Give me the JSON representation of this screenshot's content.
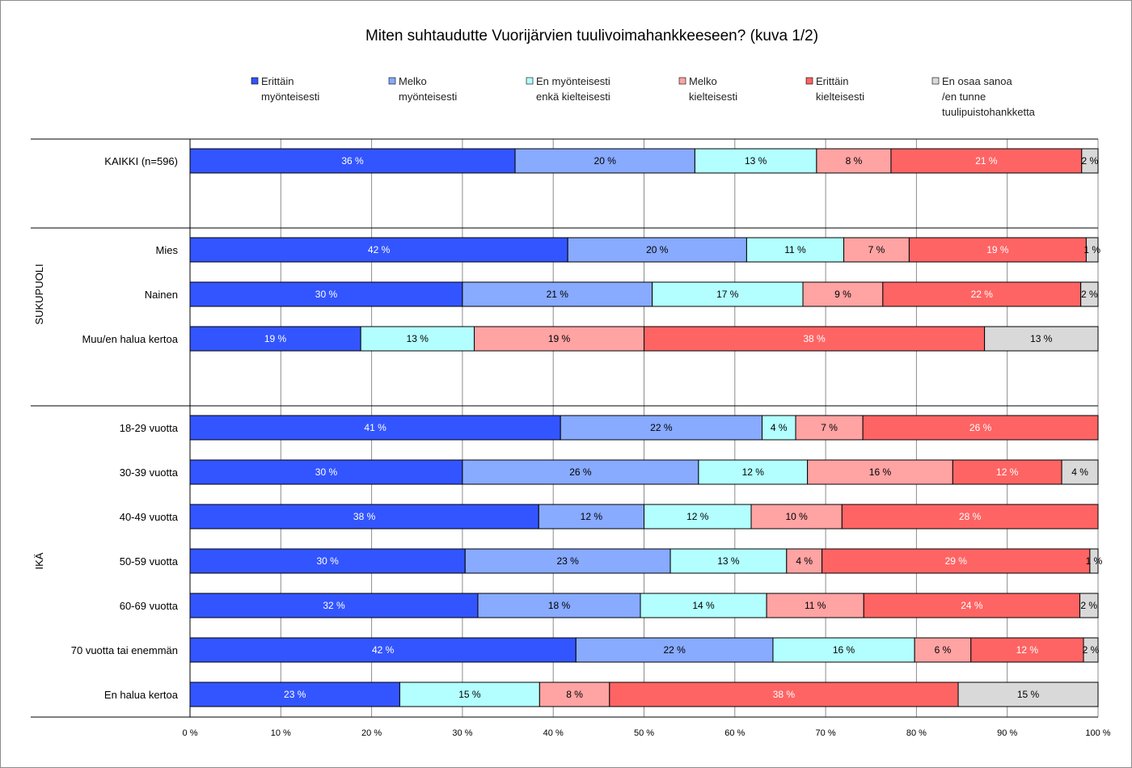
{
  "chart_data": {
    "type": "bar",
    "orientation": "horizontal-stacked-percent",
    "title": "Miten suhtaudutte Vuorijärvien tuulivoimahankkeeseen? (kuva 1/2)",
    "colors": {
      "erittain_myonteisesti": "#3355ff",
      "melko_myonteisesti": "#88aaff",
      "en_myonteisesti": "#b3ffff",
      "melko_kielteisesti": "#ffa3a3",
      "erittain_kielteisesti": "#ff6464",
      "en_osaa": "#d9d9d9",
      "grid": "#8c8c8c",
      "border": "#000000"
    },
    "series": [
      {
        "key": "erittain_myonteisesti",
        "label_lines": [
          "Erittäin",
          "myönteisesti"
        ],
        "label_color": "#ffffff"
      },
      {
        "key": "melko_myonteisesti",
        "label_lines": [
          "Melko",
          "myönteisesti"
        ],
        "label_color": "#000000"
      },
      {
        "key": "en_myonteisesti",
        "label_lines": [
          "En myönteisesti",
          "enkä kielteisesti"
        ],
        "label_color": "#000000"
      },
      {
        "key": "melko_kielteisesti",
        "label_lines": [
          "Melko",
          "kielteisesti"
        ],
        "label_color": "#000000"
      },
      {
        "key": "erittain_kielteisesti",
        "label_lines": [
          "Erittäin",
          "kielteisesti"
        ],
        "label_color": "#ffffff"
      },
      {
        "key": "en_osaa",
        "label_lines": [
          "En osaa sanoa",
          "/en tunne",
          "tuulipuistohankketta"
        ],
        "label_color": "#000000"
      }
    ],
    "x_axis": {
      "range": [
        0,
        100
      ],
      "ticks": [
        0,
        10,
        20,
        30,
        40,
        50,
        60,
        70,
        80,
        90,
        100
      ],
      "tick_labels": [
        "0 %",
        "10 %",
        "20 %",
        "30 %",
        "40 %",
        "50 %",
        "60 %",
        "70 %",
        "80 %",
        "90 %",
        "100 %"
      ]
    },
    "groups": [
      {
        "label": "",
        "rows": [
          0
        ]
      },
      {
        "label": "SUKUPUOLI",
        "rows": [
          1,
          2,
          3
        ]
      },
      {
        "label": "IKÄ",
        "rows": [
          4,
          5,
          6,
          7,
          8,
          9,
          10
        ]
      }
    ],
    "rows": [
      {
        "label": "KAIKKI (n=596)",
        "segments": [
          {
            "series": "erittain_myonteisesti",
            "value": 35.8,
            "text": "36 %"
          },
          {
            "series": "melko_myonteisesti",
            "value": 19.8,
            "text": "20 %"
          },
          {
            "series": "en_myonteisesti",
            "value": 13.4,
            "text": "13 %"
          },
          {
            "series": "melko_kielteisesti",
            "value": 8.2,
            "text": "8 %"
          },
          {
            "series": "erittain_kielteisesti",
            "value": 21.0,
            "text": "21 %"
          },
          {
            "series": "en_osaa",
            "value": 1.8,
            "text": "2 %"
          }
        ]
      },
      {
        "label": "Mies",
        "segments": [
          {
            "series": "erittain_myonteisesti",
            "value": 41.6,
            "text": "42 %"
          },
          {
            "series": "melko_myonteisesti",
            "value": 19.7,
            "text": "20 %"
          },
          {
            "series": "en_myonteisesti",
            "value": 10.7,
            "text": "11 %"
          },
          {
            "series": "melko_kielteisesti",
            "value": 7.2,
            "text": "7 %"
          },
          {
            "series": "erittain_kielteisesti",
            "value": 19.5,
            "text": "19 %"
          },
          {
            "series": "en_osaa",
            "value": 1.3,
            "text": "1 %"
          }
        ]
      },
      {
        "label": "Nainen",
        "segments": [
          {
            "series": "erittain_myonteisesti",
            "value": 30.0,
            "text": "30 %"
          },
          {
            "series": "melko_myonteisesti",
            "value": 20.9,
            "text": "21 %"
          },
          {
            "series": "en_myonteisesti",
            "value": 16.6,
            "text": "17 %"
          },
          {
            "series": "melko_kielteisesti",
            "value": 8.8,
            "text": "9 %"
          },
          {
            "series": "erittain_kielteisesti",
            "value": 21.8,
            "text": "22 %"
          },
          {
            "series": "en_osaa",
            "value": 1.9,
            "text": "2 %"
          }
        ]
      },
      {
        "label": "Muu/en halua kertoa",
        "segments": [
          {
            "series": "erittain_myonteisesti",
            "value": 18.8,
            "text": "19 %"
          },
          {
            "series": "en_myonteisesti",
            "value": 12.5,
            "text": "13 %"
          },
          {
            "series": "melko_kielteisesti",
            "value": 18.7,
            "text": "19 %"
          },
          {
            "series": "erittain_kielteisesti",
            "value": 37.5,
            "text": "38 %"
          },
          {
            "series": "en_osaa",
            "value": 12.5,
            "text": "13 %"
          }
        ]
      },
      {
        "label": "18-29 vuotta",
        "segments": [
          {
            "series": "erittain_myonteisesti",
            "value": 40.8,
            "text": "41 %"
          },
          {
            "series": "melko_myonteisesti",
            "value": 22.2,
            "text": "22 %"
          },
          {
            "series": "en_myonteisesti",
            "value": 3.7,
            "text": "4 %"
          },
          {
            "series": "melko_kielteisesti",
            "value": 7.4,
            "text": "7 %"
          },
          {
            "series": "erittain_kielteisesti",
            "value": 25.9,
            "text": "26 %"
          }
        ]
      },
      {
        "label": "30-39 vuotta",
        "segments": [
          {
            "series": "erittain_myonteisesti",
            "value": 30.0,
            "text": "30 %"
          },
          {
            "series": "melko_myonteisesti",
            "value": 26.0,
            "text": "26 %"
          },
          {
            "series": "en_myonteisesti",
            "value": 12.0,
            "text": "12 %"
          },
          {
            "series": "melko_kielteisesti",
            "value": 16.0,
            "text": "16 %"
          },
          {
            "series": "erittain_kielteisesti",
            "value": 12.0,
            "text": "12 %"
          },
          {
            "series": "en_osaa",
            "value": 4.0,
            "text": "4 %"
          }
        ]
      },
      {
        "label": "40-49 vuotta",
        "segments": [
          {
            "series": "erittain_myonteisesti",
            "value": 38.4,
            "text": "38 %"
          },
          {
            "series": "melko_myonteisesti",
            "value": 11.6,
            "text": "12 %"
          },
          {
            "series": "en_myonteisesti",
            "value": 11.8,
            "text": "12 %"
          },
          {
            "series": "melko_kielteisesti",
            "value": 10.0,
            "text": "10 %"
          },
          {
            "series": "erittain_kielteisesti",
            "value": 28.2,
            "text": "28 %"
          }
        ]
      },
      {
        "label": "50-59 vuotta",
        "segments": [
          {
            "series": "erittain_myonteisesti",
            "value": 30.3,
            "text": "30 %"
          },
          {
            "series": "melko_myonteisesti",
            "value": 22.6,
            "text": "23 %"
          },
          {
            "series": "en_myonteisesti",
            "value": 12.8,
            "text": "13 %"
          },
          {
            "series": "melko_kielteisesti",
            "value": 3.9,
            "text": "4 %"
          },
          {
            "series": "erittain_kielteisesti",
            "value": 29.5,
            "text": "29 %"
          },
          {
            "series": "en_osaa",
            "value": 0.9,
            "text": "1 %"
          }
        ]
      },
      {
        "label": "60-69 vuotta",
        "segments": [
          {
            "series": "erittain_myonteisesti",
            "value": 31.7,
            "text": "32 %"
          },
          {
            "series": "melko_myonteisesti",
            "value": 17.9,
            "text": "18 %"
          },
          {
            "series": "en_myonteisesti",
            "value": 13.9,
            "text": "14 %"
          },
          {
            "series": "melko_kielteisesti",
            "value": 10.7,
            "text": "11 %"
          },
          {
            "series": "erittain_kielteisesti",
            "value": 23.8,
            "text": "24 %"
          },
          {
            "series": "en_osaa",
            "value": 2.0,
            "text": "2 %"
          }
        ]
      },
      {
        "label": "70 vuotta tai enemmän",
        "segments": [
          {
            "series": "erittain_myonteisesti",
            "value": 42.5,
            "text": "42 %"
          },
          {
            "series": "melko_myonteisesti",
            "value": 21.7,
            "text": "22 %"
          },
          {
            "series": "en_myonteisesti",
            "value": 15.6,
            "text": "16 %"
          },
          {
            "series": "melko_kielteisesti",
            "value": 6.2,
            "text": "6 %"
          },
          {
            "series": "erittain_kielteisesti",
            "value": 12.4,
            "text": "12 %"
          },
          {
            "series": "en_osaa",
            "value": 1.6,
            "text": "2 %"
          }
        ]
      },
      {
        "label": "En halua kertoa",
        "segments": [
          {
            "series": "erittain_myonteisesti",
            "value": 23.1,
            "text": "23 %"
          },
          {
            "series": "en_myonteisesti",
            "value": 15.4,
            "text": "15 %"
          },
          {
            "series": "melko_kielteisesti",
            "value": 7.7,
            "text": "8 %"
          },
          {
            "series": "erittain_kielteisesti",
            "value": 38.4,
            "text": "38 %"
          },
          {
            "series": "en_osaa",
            "value": 15.4,
            "text": "15 %"
          }
        ]
      }
    ]
  }
}
